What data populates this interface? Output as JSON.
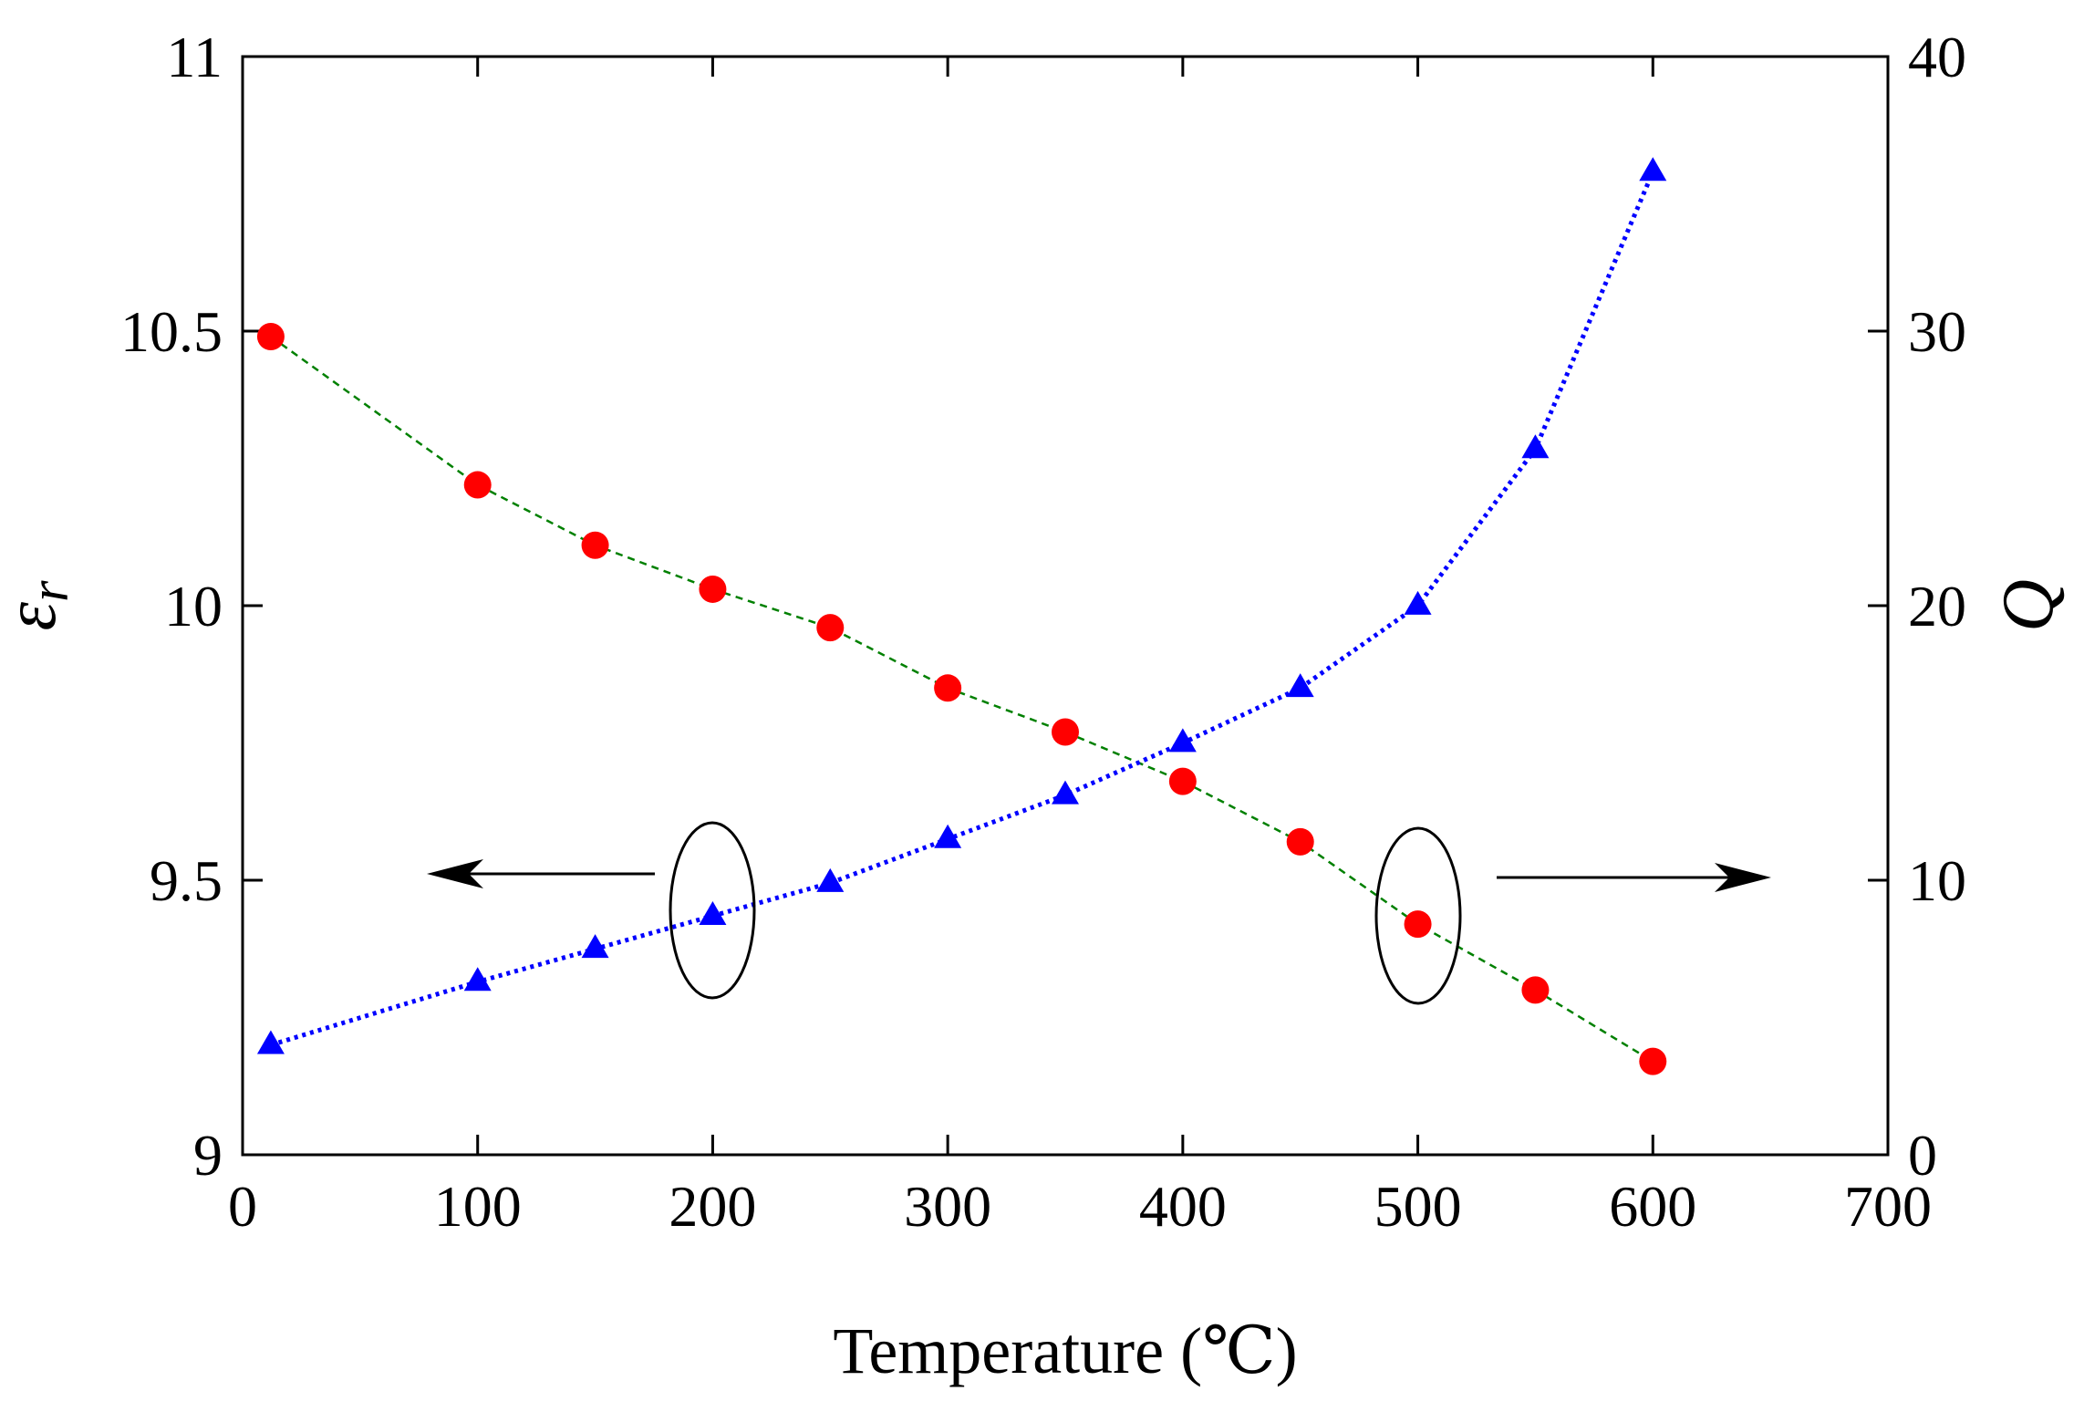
{
  "chart_data": {
    "type": "line",
    "title": "",
    "xlabel": "Temperature (℃)",
    "ylabel_left": "ε",
    "ylabel_left_subscript": "r",
    "ylabel_right": "Q",
    "xlim": [
      0,
      700
    ],
    "ylim_left": [
      9,
      11
    ],
    "ylim_right": [
      0,
      40
    ],
    "xticks": [
      0,
      100,
      200,
      300,
      400,
      500,
      600,
      700
    ],
    "yticks_left": [
      9,
      9.5,
      10,
      10.5,
      11
    ],
    "yticks_left_labels": [
      "9",
      "9.5",
      "10",
      "10.5",
      "11"
    ],
    "yticks_right": [
      0,
      10,
      20,
      30,
      40
    ],
    "grid": false,
    "series": [
      {
        "name": "εr",
        "axis": "left",
        "marker": "circle",
        "color": "#ff0000",
        "line_color": "#008000",
        "line_style": "dashed",
        "x": [
          12,
          100,
          150,
          200,
          250,
          300,
          350,
          400,
          450,
          500,
          550,
          600
        ],
        "values": [
          10.49,
          10.22,
          10.11,
          10.03,
          9.96,
          9.85,
          9.77,
          9.68,
          9.57,
          9.42,
          9.3,
          9.17
        ]
      },
      {
        "name": "Q",
        "axis": "right",
        "marker": "triangle",
        "color": "#0000ff",
        "line_color": "#0000ff",
        "line_style": "dotted",
        "x": [
          12,
          100,
          150,
          200,
          250,
          300,
          350,
          400,
          450,
          500,
          550,
          600
        ],
        "values": [
          4.0,
          6.3,
          7.5,
          8.7,
          9.9,
          11.5,
          13.1,
          15.0,
          17.0,
          20.0,
          25.7,
          35.8
        ]
      }
    ],
    "annotations": [
      {
        "type": "ellipse",
        "around": "Q at 200",
        "arrow": "left",
        "meaning": "Q series read on left axis side indicator"
      },
      {
        "type": "ellipse",
        "around": "εr at 500",
        "arrow": "right"
      }
    ]
  }
}
